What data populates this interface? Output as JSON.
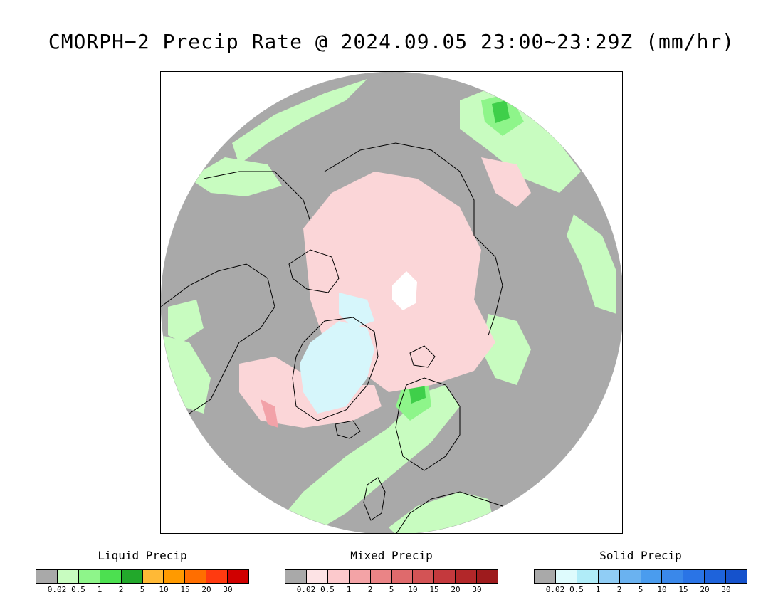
{
  "title": "CMORPH−2 Precip Rate @ 2024.09.05 23:00~23:29Z (mm/hr)",
  "map": {
    "projection": "north polar stereographic",
    "region": "Northern Hemisphere / Arctic",
    "colors": {
      "no_precip": "#a9a9a9",
      "liquid_light": "#c8fcc0",
      "liquid_mid": "#8ef58a",
      "liquid_heavy": "#3fcf4a",
      "mixed_light": "#fbd6d8",
      "mixed_mid": "#f2a2a8",
      "solid_light": "#d6f6fb",
      "solid_mid": "#a9e6f5",
      "ice_white": "#ffffff",
      "coast": "#000000"
    }
  },
  "legends": [
    {
      "title": "Liquid Precip",
      "ticks": [
        "0.02",
        "0.5",
        "1",
        "2",
        "5",
        "10",
        "15",
        "20",
        "30"
      ],
      "colors": [
        "#a9a9a9",
        "#c8fcc0",
        "#8ef58a",
        "#4ce050",
        "#22a82b",
        "#ffb936",
        "#ff9a00",
        "#ff6e00",
        "#ff3a10",
        "#d00000"
      ]
    },
    {
      "title": "Mixed Precip",
      "ticks": [
        "0.02",
        "0.5",
        "1",
        "2",
        "5",
        "10",
        "15",
        "20",
        "30"
      ],
      "colors": [
        "#a9a9a9",
        "#fde3e5",
        "#fcc9cc",
        "#f3a3a6",
        "#ea8486",
        "#df6a6c",
        "#d35355",
        "#c4393d",
        "#b22729",
        "#9e1b1d"
      ]
    },
    {
      "title": "Solid Precip",
      "ticks": [
        "0.02",
        "0.5",
        "1",
        "2",
        "5",
        "10",
        "15",
        "20",
        "30"
      ],
      "colors": [
        "#a9a9a9",
        "#defbfd",
        "#b0ecf8",
        "#90cdf5",
        "#6ab2f0",
        "#4a9cee",
        "#3a88ea",
        "#2a74e6",
        "#1e63db",
        "#1552cc"
      ]
    }
  ]
}
